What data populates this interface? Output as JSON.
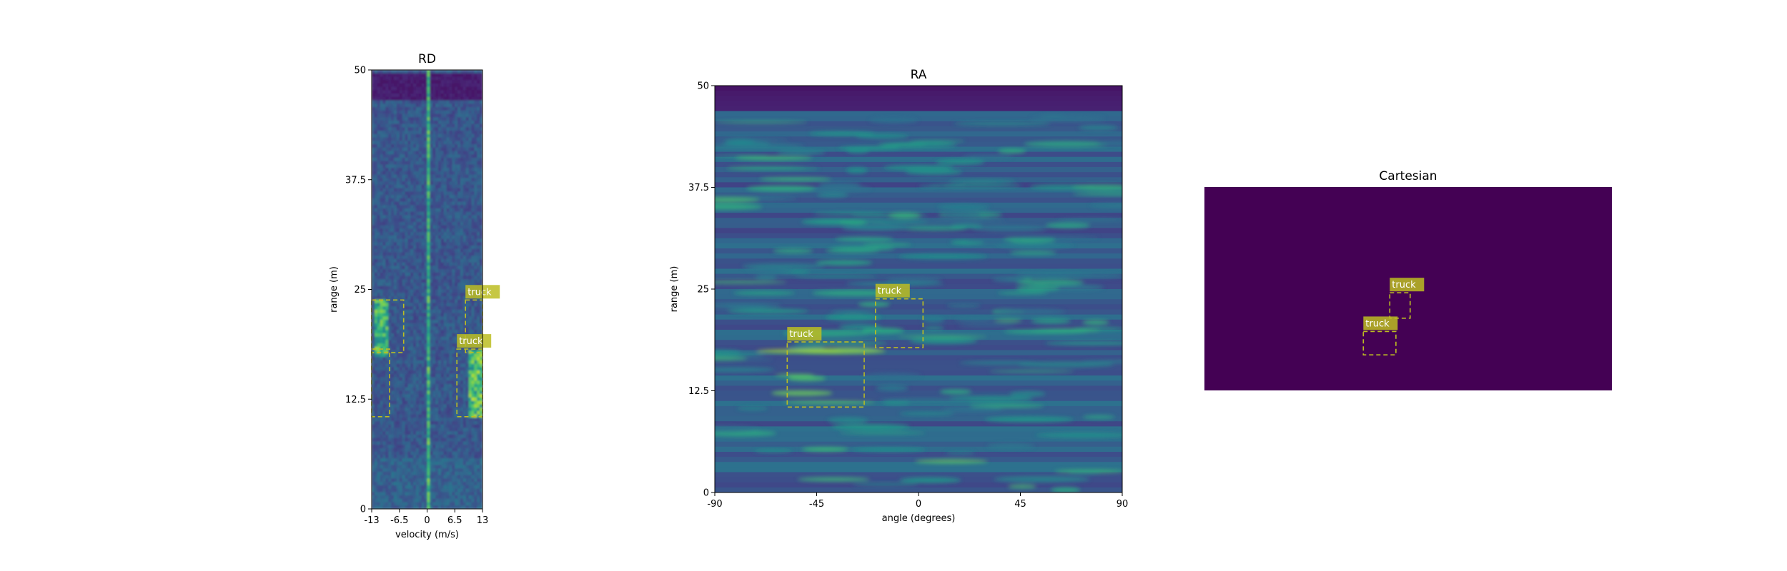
{
  "chart_data": [
    {
      "id": "rd",
      "type": "heatmap",
      "title": "RD",
      "xlabel": "velocity (m/s)",
      "ylabel": "range (m)",
      "xlim": [
        -13,
        13
      ],
      "ylim": [
        0,
        50
      ],
      "xticks": [
        -13,
        -6.5,
        0,
        6.5,
        13
      ],
      "xtick_labels": [
        "-13",
        "-6.5",
        "0",
        "6.5",
        "13"
      ],
      "yticks": [
        0,
        12.5,
        25,
        37.5,
        50
      ],
      "ytick_labels": [
        "0",
        "12.5",
        "25",
        "37.5",
        "50"
      ],
      "colormap": "viridis",
      "box_color": "#bcbd22",
      "boxes": [
        {
          "label": "",
          "x0": -13,
          "x1": -5.5,
          "y0": 17.8,
          "y1": 23.8
        },
        {
          "label": "",
          "x0": -13,
          "x1": -8.8,
          "y0": 10.5,
          "y1": 18.2
        },
        {
          "label": "truck",
          "x0": 9,
          "x1": 13,
          "y0": 17.8,
          "y1": 23.8
        },
        {
          "label": "truck",
          "x0": 7,
          "x1": 13,
          "y0": 10.5,
          "y1": 18.2
        }
      ]
    },
    {
      "id": "ra",
      "type": "heatmap",
      "title": "RA",
      "xlabel": "angle (degrees)",
      "ylabel": "range (m)",
      "xlim": [
        -90,
        90
      ],
      "ylim": [
        0,
        50
      ],
      "xticks": [
        -90,
        -45,
        0,
        45,
        90
      ],
      "xtick_labels": [
        "-90",
        "-45",
        "0",
        "45",
        "90"
      ],
      "yticks": [
        0,
        12.5,
        25,
        37.5,
        50
      ],
      "ytick_labels": [
        "0",
        "12.5",
        "25",
        "37.5",
        "50"
      ],
      "colormap": "viridis",
      "box_color": "#bcbd22",
      "boxes": [
        {
          "label": "truck",
          "x0": -19,
          "x1": 2,
          "y0": 17.8,
          "y1": 23.8
        },
        {
          "label": "truck",
          "x0": -58,
          "x1": -24,
          "y0": 10.5,
          "y1": 18.5
        }
      ]
    },
    {
      "id": "cart",
      "type": "heatmap",
      "title": "Cartesian",
      "background_color": "#440154",
      "box_color": "#bcbd22",
      "boxes": [
        {
          "label": "truck",
          "x0": 0.455,
          "x1": 0.505,
          "y0": 0.52,
          "y1": 0.645
        },
        {
          "label": "truck",
          "x0": 0.39,
          "x1": 0.47,
          "y0": 0.71,
          "y1": 0.825
        }
      ]
    }
  ]
}
